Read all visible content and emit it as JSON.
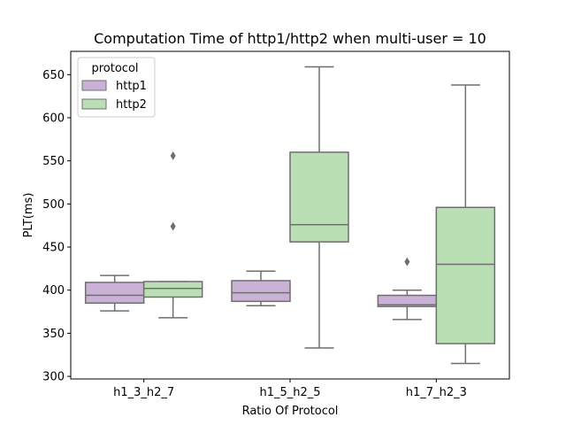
{
  "chart_data": {
    "type": "box",
    "title": "Computation Time of http1/http2 when multi-user = 10",
    "xlabel": "Ratio Of Protocol",
    "ylabel": "PLT(ms)",
    "ylim": [
      297,
      677
    ],
    "yticks": [
      300,
      350,
      400,
      450,
      500,
      550,
      600,
      650
    ],
    "grid": false,
    "legend": {
      "title": "protocol",
      "position": "top-left"
    },
    "categories": [
      "h1_3_h2_7",
      "h1_5_h2_5",
      "h1_7_h2_3"
    ],
    "series": [
      {
        "name": "http1",
        "color": "#c9b2d6",
        "boxes": [
          {
            "whisker_low": 376,
            "q1": 385,
            "median": 394,
            "q3": 409,
            "whisker_high": 417,
            "outliers": []
          },
          {
            "whisker_low": 382,
            "q1": 387,
            "median": 397,
            "q3": 411,
            "whisker_high": 422,
            "outliers": []
          },
          {
            "whisker_low": 366,
            "q1": 381,
            "median": 383,
            "q3": 394,
            "whisker_high": 400,
            "outliers": [
              433
            ]
          }
        ]
      },
      {
        "name": "http2",
        "color": "#bbdfb5",
        "boxes": [
          {
            "whisker_low": 368,
            "q1": 392,
            "median": 402,
            "q3": 410,
            "whisker_high": 410,
            "outliers": [
              474,
              556
            ]
          },
          {
            "whisker_low": 333,
            "q1": 456,
            "median": 476,
            "q3": 560,
            "whisker_high": 659,
            "outliers": []
          },
          {
            "whisker_low": 315,
            "q1": 338,
            "median": 430,
            "q3": 496,
            "whisker_high": 638,
            "outliers": []
          }
        ]
      }
    ]
  }
}
